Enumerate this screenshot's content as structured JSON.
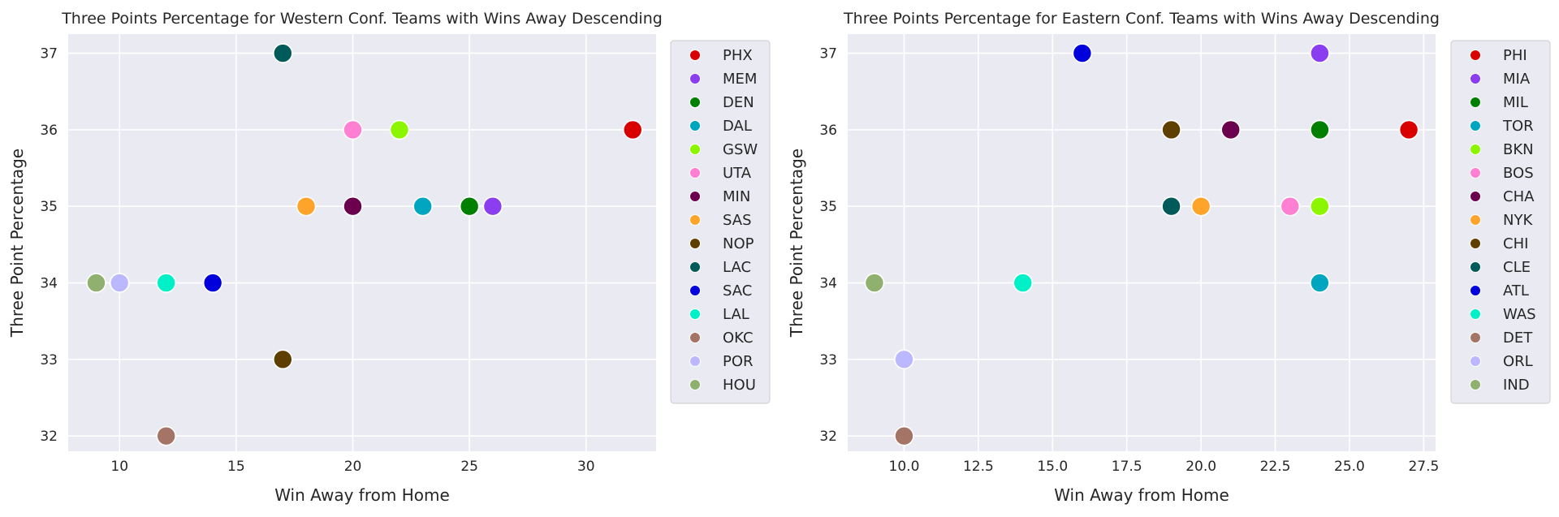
{
  "chart_data": [
    {
      "type": "scatter",
      "title": "Three Points Percentage for Western Conf. Teams with Wins Away Descending",
      "xlabel": "Win Away from Home",
      "ylabel": "Three Point Percentage",
      "xlim": [
        7.8,
        33.0
      ],
      "ylim": [
        31.8,
        37.25
      ],
      "xticks": [
        10,
        15,
        20,
        25,
        30
      ],
      "xtick_labels": [
        "10",
        "15",
        "20",
        "25",
        "30"
      ],
      "yticks": [
        32,
        33,
        34,
        35,
        36,
        37
      ],
      "ytick_labels": [
        "32",
        "33",
        "34",
        "35",
        "36",
        "37"
      ],
      "grid": true,
      "legend_position": "right-outside-top",
      "series": [
        {
          "name": "PHX",
          "color": "#d90000",
          "x": 32,
          "y": 36
        },
        {
          "name": "MEM",
          "color": "#8b3df0",
          "x": 26,
          "y": 35
        },
        {
          "name": "DEN",
          "color": "#007f00",
          "x": 25,
          "y": 35
        },
        {
          "name": "DAL",
          "color": "#00a6c0",
          "x": 23,
          "y": 35
        },
        {
          "name": "GSW",
          "color": "#8cf500",
          "x": 22,
          "y": 36
        },
        {
          "name": "UTA",
          "color": "#ff7fd2",
          "x": 20,
          "y": 36
        },
        {
          "name": "MIN",
          "color": "#6b004f",
          "x": 20,
          "y": 35
        },
        {
          "name": "SAS",
          "color": "#ffa42a",
          "x": 18,
          "y": 35
        },
        {
          "name": "NOP",
          "color": "#5e3f00",
          "x": 17,
          "y": 33
        },
        {
          "name": "LAC",
          "color": "#005a5a",
          "x": 17,
          "y": 37
        },
        {
          "name": "SAC",
          "color": "#0000dc",
          "x": 14,
          "y": 34
        },
        {
          "name": "LAL",
          "color": "#00f0c8",
          "x": 12,
          "y": 34
        },
        {
          "name": "OKC",
          "color": "#a47466",
          "x": 12,
          "y": 32
        },
        {
          "name": "POR",
          "color": "#bcb8ff",
          "x": 10,
          "y": 34
        },
        {
          "name": "HOU",
          "color": "#8fb06e",
          "x": 9,
          "y": 34
        }
      ]
    },
    {
      "type": "scatter",
      "title": "Three Points Percentage for Eastern Conf. Teams with Wins Away Descending",
      "xlabel": "Win Away from Home",
      "ylabel": "Three Point Percentage",
      "xlim": [
        8.1,
        27.9
      ],
      "ylim": [
        31.8,
        37.25
      ],
      "xticks": [
        10,
        12.5,
        15,
        17.5,
        20,
        22.5,
        25,
        27.5
      ],
      "xtick_labels": [
        "10.0",
        "12.5",
        "15.0",
        "17.5",
        "20.0",
        "22.5",
        "25.0",
        "27.5"
      ],
      "yticks": [
        32,
        33,
        34,
        35,
        36,
        37
      ],
      "ytick_labels": [
        "32",
        "33",
        "34",
        "35",
        "36",
        "37"
      ],
      "grid": true,
      "legend_position": "right-outside-top",
      "series": [
        {
          "name": "PHI",
          "color": "#d90000",
          "x": 27,
          "y": 36
        },
        {
          "name": "MIA",
          "color": "#8b3df0",
          "x": 24,
          "y": 37
        },
        {
          "name": "MIL",
          "color": "#007f00",
          "x": 24,
          "y": 36
        },
        {
          "name": "TOR",
          "color": "#00a6c0",
          "x": 24,
          "y": 34
        },
        {
          "name": "BKN",
          "color": "#8cf500",
          "x": 24,
          "y": 35
        },
        {
          "name": "BOS",
          "color": "#ff7fd2",
          "x": 23,
          "y": 35
        },
        {
          "name": "CHA",
          "color": "#6b004f",
          "x": 21,
          "y": 36
        },
        {
          "name": "NYK",
          "color": "#ffa42a",
          "x": 20,
          "y": 35
        },
        {
          "name": "CHI",
          "color": "#5e3f00",
          "x": 19,
          "y": 36
        },
        {
          "name": "CLE",
          "color": "#005a5a",
          "x": 19,
          "y": 35
        },
        {
          "name": "ATL",
          "color": "#0000dc",
          "x": 16,
          "y": 37
        },
        {
          "name": "WAS",
          "color": "#00f0c8",
          "x": 14,
          "y": 34
        },
        {
          "name": "DET",
          "color": "#a47466",
          "x": 10,
          "y": 32
        },
        {
          "name": "ORL",
          "color": "#bcb8ff",
          "x": 10,
          "y": 33
        },
        {
          "name": "IND",
          "color": "#8fb06e",
          "x": 9,
          "y": 34
        }
      ]
    }
  ]
}
